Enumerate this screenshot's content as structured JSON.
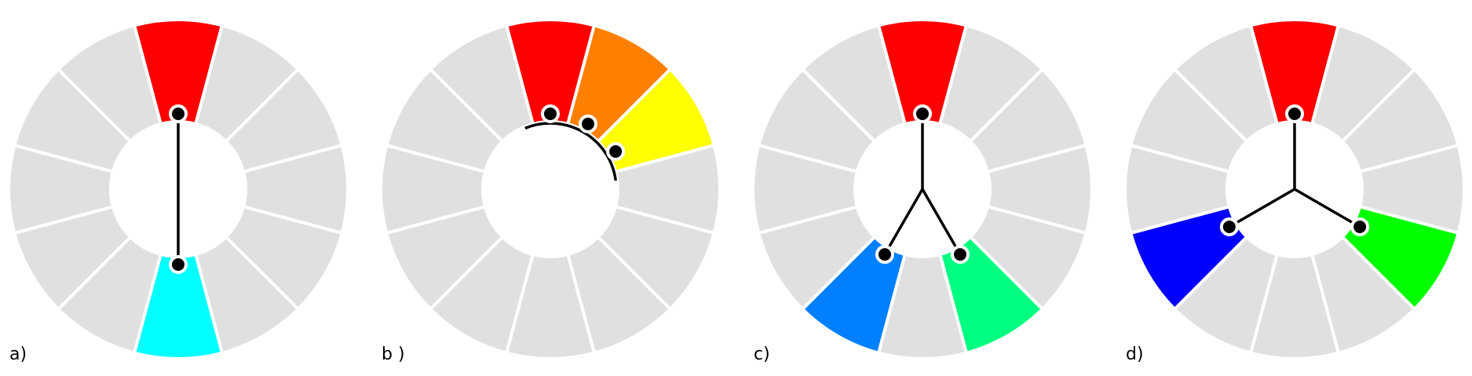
{
  "colors": {
    "background": "#ffffff",
    "segment_inactive": "#e0e0e0",
    "segment_border": "#ffffff",
    "connector": "#000000",
    "marker_fill": "#000000",
    "marker_ring": "#ffffff"
  },
  "wheel": {
    "segments": 12,
    "order_clockwise_from_top": [
      "red",
      "red-orange",
      "orange",
      "yellow-orange",
      "yellow",
      "yellow-green",
      "green",
      "blue-green",
      "blue",
      "blue-violet",
      "violet",
      "red-violet"
    ]
  },
  "panels": [
    {
      "label": "a)",
      "scheme": "complementary",
      "highlighted": [
        {
          "index": 0,
          "color": "#ff0000"
        },
        {
          "index": 6,
          "color": "#00ffff"
        }
      ],
      "connector": "line"
    },
    {
      "label": "b )",
      "scheme": "analogous",
      "highlighted": [
        {
          "index": 0,
          "color": "#ff0000"
        },
        {
          "index": 1,
          "color": "#ff7f00"
        },
        {
          "index": 2,
          "color": "#ffff00"
        }
      ],
      "connector": "arc"
    },
    {
      "label": "c)",
      "scheme": "split-complementary",
      "highlighted": [
        {
          "index": 0,
          "color": "#ff0000"
        },
        {
          "index": 5,
          "color": "#00ff80"
        },
        {
          "index": 7,
          "color": "#0080ff"
        }
      ],
      "connector": "y"
    },
    {
      "label": "d)",
      "scheme": "triadic",
      "highlighted": [
        {
          "index": 0,
          "color": "#ff0000"
        },
        {
          "index": 4,
          "color": "#00ff00"
        },
        {
          "index": 8,
          "color": "#0000ff"
        }
      ],
      "connector": "y"
    }
  ]
}
